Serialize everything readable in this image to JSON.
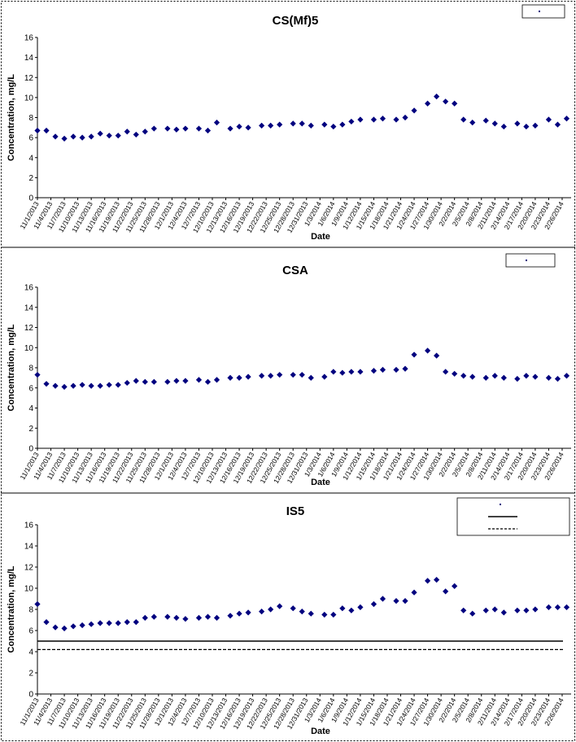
{
  "colors": {
    "marker": "#00007f",
    "axis": "#000000",
    "limit": "#000000"
  },
  "chart_data": [
    {
      "type": "scatter",
      "title": "CS(Mf)5",
      "xlabel": "Date",
      "ylabel": "Concentration, mg/L",
      "ylim": [
        0,
        16
      ],
      "yticks": [
        0,
        2,
        4,
        6,
        8,
        10,
        12,
        14,
        16
      ],
      "xrange": [
        "2013-11-01",
        "2014-02-28"
      ],
      "xticks": [
        "11/1/2013",
        "11/4/2013",
        "11/7/2013",
        "11/10/2013",
        "11/13/2013",
        "11/16/2013",
        "11/19/2013",
        "11/22/2013",
        "11/25/2013",
        "11/28/2013",
        "12/1/2013",
        "12/4/2013",
        "12/7/2013",
        "12/10/2013",
        "12/13/2013",
        "12/16/2013",
        "12/19/2013",
        "12/22/2013",
        "12/25/2013",
        "12/28/2013",
        "12/31/2013",
        "1/3/2014",
        "1/6/2014",
        "1/9/2014",
        "1/12/2014",
        "1/15/2014",
        "1/18/2014",
        "1/21/2014",
        "1/24/2014",
        "1/27/2014",
        "1/30/2014",
        "2/2/2014",
        "2/5/2014",
        "2/8/2014",
        "2/11/2014",
        "2/14/2014",
        "2/17/2014",
        "2/20/2014",
        "2/23/2014",
        "2/26/2014"
      ],
      "legend": {
        "position": "top-right",
        "entries": [
          {
            "label": ""
          }
        ]
      },
      "series": [
        {
          "marker": "diamond",
          "x": [
            "2013-11-01",
            "2013-11-03",
            "2013-11-05",
            "2013-11-07",
            "2013-11-09",
            "2013-11-11",
            "2013-11-13",
            "2013-11-15",
            "2013-11-17",
            "2013-11-19",
            "2013-11-21",
            "2013-11-23",
            "2013-11-25",
            "2013-11-27",
            "2013-11-30",
            "2013-12-02",
            "2013-12-04",
            "2013-12-07",
            "2013-12-09",
            "2013-12-11",
            "2013-12-14",
            "2013-12-16",
            "2013-12-18",
            "2013-12-21",
            "2013-12-23",
            "2013-12-25",
            "2013-12-28",
            "2013-12-30",
            "2014-01-01",
            "2014-01-04",
            "2014-01-06",
            "2014-01-08",
            "2014-01-10",
            "2014-01-12",
            "2014-01-15",
            "2014-01-17",
            "2014-01-20",
            "2014-01-22",
            "2014-01-24",
            "2014-01-27",
            "2014-01-29",
            "2014-01-31",
            "2014-02-02",
            "2014-02-04",
            "2014-02-06",
            "2014-02-09",
            "2014-02-11",
            "2014-02-13",
            "2014-02-16",
            "2014-02-18",
            "2014-02-20",
            "2014-02-23",
            "2014-02-25",
            "2014-02-27"
          ],
          "y": [
            6.7,
            6.7,
            6.1,
            5.9,
            6.1,
            6.0,
            6.1,
            6.4,
            6.2,
            6.2,
            6.6,
            6.3,
            6.6,
            6.9,
            6.9,
            6.8,
            6.9,
            6.9,
            6.7,
            7.5,
            6.9,
            7.1,
            7.0,
            7.2,
            7.2,
            7.3,
            7.4,
            7.4,
            7.2,
            7.3,
            7.1,
            7.3,
            7.6,
            7.8,
            7.8,
            7.9,
            7.8,
            8.0,
            8.7,
            9.4,
            10.1,
            9.6,
            9.4,
            7.8,
            7.5,
            7.7,
            7.4,
            7.1,
            7.4,
            7.1,
            7.2,
            7.8,
            7.3,
            7.9
          ]
        }
      ]
    },
    {
      "type": "scatter",
      "title": "CSA",
      "xlabel": "Date",
      "ylabel": "Concentration, mg/L",
      "ylim": [
        0,
        16
      ],
      "yticks": [
        0,
        2,
        4,
        6,
        8,
        10,
        12,
        14,
        16
      ],
      "xrange": [
        "2013-11-01",
        "2014-02-28"
      ],
      "xticks": [
        "11/1/2013",
        "11/4/2013",
        "11/7/2013",
        "11/10/2013",
        "11/13/2013",
        "11/16/2013",
        "11/19/2013",
        "11/22/2013",
        "11/25/2013",
        "11/28/2013",
        "12/1/2013",
        "12/4/2013",
        "12/7/2013",
        "12/10/2013",
        "12/13/2013",
        "12/16/2013",
        "12/19/2013",
        "12/22/2013",
        "12/25/2013",
        "12/28/2013",
        "12/31/2013",
        "1/3/2014",
        "1/6/2014",
        "1/9/2014",
        "1/12/2014",
        "1/15/2014",
        "1/18/2014",
        "1/21/2014",
        "1/24/2014",
        "1/27/2014",
        "1/30/2014",
        "2/2/2014",
        "2/5/2014",
        "2/8/2014",
        "2/11/2014",
        "2/14/2014",
        "2/17/2014",
        "2/20/2014",
        "2/23/2014",
        "2/26/2014"
      ],
      "legend": {
        "position": "top-right",
        "entries": [
          {
            "label": ""
          }
        ]
      },
      "series": [
        {
          "marker": "diamond",
          "x": [
            "2013-11-01",
            "2013-11-03",
            "2013-11-05",
            "2013-11-07",
            "2013-11-09",
            "2013-11-11",
            "2013-11-13",
            "2013-11-15",
            "2013-11-17",
            "2013-11-19",
            "2013-11-21",
            "2013-11-23",
            "2013-11-25",
            "2013-11-27",
            "2013-11-30",
            "2013-12-02",
            "2013-12-04",
            "2013-12-07",
            "2013-12-09",
            "2013-12-11",
            "2013-12-14",
            "2013-12-16",
            "2013-12-18",
            "2013-12-21",
            "2013-12-23",
            "2013-12-25",
            "2013-12-28",
            "2013-12-30",
            "2014-01-01",
            "2014-01-04",
            "2014-01-06",
            "2014-01-08",
            "2014-01-10",
            "2014-01-12",
            "2014-01-15",
            "2014-01-17",
            "2014-01-20",
            "2014-01-22",
            "2014-01-24",
            "2014-01-27",
            "2014-01-29",
            "2014-01-31",
            "2014-02-02",
            "2014-02-04",
            "2014-02-06",
            "2014-02-09",
            "2014-02-11",
            "2014-02-13",
            "2014-02-16",
            "2014-02-18",
            "2014-02-20",
            "2014-02-23",
            "2014-02-25",
            "2014-02-27"
          ],
          "y": [
            7.3,
            6.4,
            6.2,
            6.1,
            6.2,
            6.3,
            6.2,
            6.2,
            6.3,
            6.3,
            6.5,
            6.7,
            6.6,
            6.6,
            6.6,
            6.7,
            6.7,
            6.8,
            6.6,
            6.8,
            7.0,
            7.0,
            7.1,
            7.2,
            7.2,
            7.3,
            7.3,
            7.3,
            7.0,
            7.1,
            7.6,
            7.5,
            7.6,
            7.6,
            7.7,
            7.8,
            7.8,
            7.9,
            9.3,
            9.7,
            9.2,
            7.6,
            7.4,
            7.2,
            7.1,
            7.0,
            7.2,
            7.0,
            6.9,
            7.2,
            7.1,
            7.0,
            6.9,
            7.2
          ]
        }
      ]
    },
    {
      "type": "scatter",
      "title": "IS5",
      "xlabel": "Date",
      "ylabel": "Concentration, mg/L",
      "ylim": [
        0,
        16
      ],
      "yticks": [
        0,
        2,
        4,
        6,
        8,
        10,
        12,
        14,
        16
      ],
      "xrange": [
        "2013-11-01",
        "2014-02-28"
      ],
      "xticks": [
        "11/1/2013",
        "11/4/2013",
        "11/7/2013",
        "11/10/2013",
        "11/13/2013",
        "11/16/2013",
        "11/19/2013",
        "11/22/2013",
        "11/25/2013",
        "11/28/2013",
        "12/1/2013",
        "12/4/2013",
        "12/7/2013",
        "12/10/2013",
        "12/13/2013",
        "12/16/2013",
        "12/19/2013",
        "12/22/2013",
        "12/25/2013",
        "12/28/2013",
        "12/31/2013",
        "1/3/2014",
        "1/6/2014",
        "1/9/2014",
        "1/12/2014",
        "1/15/2014",
        "1/18/2014",
        "1/21/2014",
        "1/24/2014",
        "1/27/2014",
        "1/30/2014",
        "2/2/2014",
        "2/5/2014",
        "2/8/2014",
        "2/11/2014",
        "2/14/2014",
        "2/17/2014",
        "2/20/2014",
        "2/23/2014",
        "2/26/2014"
      ],
      "legend": {
        "position": "top-right",
        "entries": [
          {
            "label": ""
          },
          {
            "label": ""
          },
          {
            "label": ""
          }
        ]
      },
      "reference_lines": [
        {
          "y": 5.0,
          "style": "solid"
        },
        {
          "y": 4.2,
          "style": "dashed"
        }
      ],
      "series": [
        {
          "marker": "diamond",
          "x": [
            "2013-11-01",
            "2013-11-03",
            "2013-11-05",
            "2013-11-07",
            "2013-11-09",
            "2013-11-11",
            "2013-11-13",
            "2013-11-15",
            "2013-11-17",
            "2013-11-19",
            "2013-11-21",
            "2013-11-23",
            "2013-11-25",
            "2013-11-27",
            "2013-11-30",
            "2013-12-02",
            "2013-12-04",
            "2013-12-07",
            "2013-12-09",
            "2013-12-11",
            "2013-12-14",
            "2013-12-16",
            "2013-12-18",
            "2013-12-21",
            "2013-12-23",
            "2013-12-25",
            "2013-12-28",
            "2013-12-30",
            "2014-01-01",
            "2014-01-04",
            "2014-01-06",
            "2014-01-08",
            "2014-01-10",
            "2014-01-12",
            "2014-01-15",
            "2014-01-17",
            "2014-01-20",
            "2014-01-22",
            "2014-01-24",
            "2014-01-27",
            "2014-01-29",
            "2014-01-31",
            "2014-02-02",
            "2014-02-04",
            "2014-02-06",
            "2014-02-09",
            "2014-02-11",
            "2014-02-13",
            "2014-02-16",
            "2014-02-18",
            "2014-02-20",
            "2014-02-23",
            "2014-02-25",
            "2014-02-27"
          ],
          "y": [
            8.5,
            6.8,
            6.3,
            6.2,
            6.4,
            6.5,
            6.6,
            6.7,
            6.7,
            6.7,
            6.8,
            6.8,
            7.2,
            7.3,
            7.3,
            7.2,
            7.1,
            7.2,
            7.3,
            7.2,
            7.4,
            7.6,
            7.7,
            7.8,
            8.0,
            8.3,
            8.1,
            7.8,
            7.6,
            7.5,
            7.5,
            8.1,
            7.9,
            8.2,
            8.5,
            9.0,
            8.8,
            8.8,
            9.6,
            10.7,
            10.8,
            9.7,
            10.2,
            7.9,
            7.6,
            7.9,
            8.0,
            7.7,
            7.9,
            7.9,
            8.0,
            8.2,
            8.2,
            8.2
          ]
        }
      ]
    }
  ]
}
